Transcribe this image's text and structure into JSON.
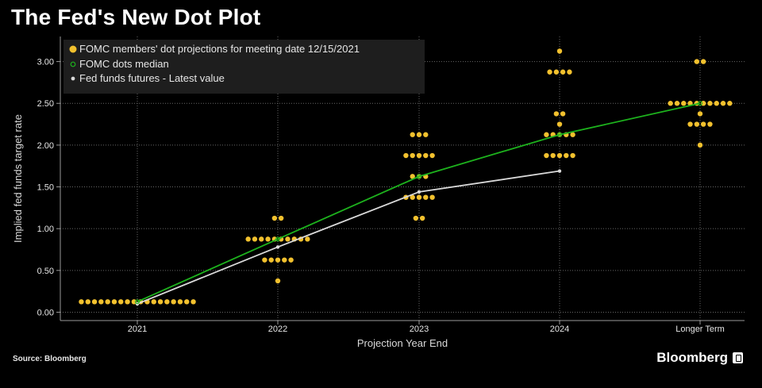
{
  "title": "The Fed's New Dot Plot",
  "source": "Source: Bloomberg",
  "brand": "Bloomberg",
  "chart_data": {
    "type": "scatter",
    "xlabel": "Projection Year End",
    "ylabel": "Implied fed funds target rate",
    "categories": [
      "2021",
      "2022",
      "2023",
      "2024",
      "Longer Term"
    ],
    "ylim": [
      -0.1,
      3.3
    ],
    "yticks": [
      "0.00",
      "0.50",
      "1.00",
      "1.50",
      "2.00",
      "2.50",
      "3.00"
    ],
    "grid": true,
    "legend_position": "top-left",
    "colors": {
      "dots": "#f2c12e",
      "median": "#1db21d",
      "futures": "#d9d9d9",
      "grid": "#666666"
    },
    "series": [
      {
        "name": "FOMC members' dot projections for meeting date 12/15/2021",
        "kind": "dots",
        "points": [
          {
            "x": "2021",
            "y": 0.125,
            "count": 18
          },
          {
            "x": "2022",
            "y": 0.375,
            "count": 1
          },
          {
            "x": "2022",
            "y": 0.625,
            "count": 5
          },
          {
            "x": "2022",
            "y": 0.875,
            "count": 10
          },
          {
            "x": "2022",
            "y": 1.125,
            "count": 2
          },
          {
            "x": "2023",
            "y": 1.125,
            "count": 2
          },
          {
            "x": "2023",
            "y": 1.375,
            "count": 5
          },
          {
            "x": "2023",
            "y": 1.625,
            "count": 3
          },
          {
            "x": "2023",
            "y": 1.875,
            "count": 5
          },
          {
            "x": "2023",
            "y": 2.125,
            "count": 3
          },
          {
            "x": "2024",
            "y": 1.875,
            "count": 5
          },
          {
            "x": "2024",
            "y": 2.125,
            "count": 5
          },
          {
            "x": "2024",
            "y": 2.25,
            "count": 1
          },
          {
            "x": "2024",
            "y": 2.375,
            "count": 2
          },
          {
            "x": "2024",
            "y": 2.875,
            "count": 4
          },
          {
            "x": "2024",
            "y": 3.125,
            "count": 1
          },
          {
            "x": "Longer Term",
            "y": 2.0,
            "count": 1
          },
          {
            "x": "Longer Term",
            "y": 2.25,
            "count": 4
          },
          {
            "x": "Longer Term",
            "y": 2.375,
            "count": 1
          },
          {
            "x": "Longer Term",
            "y": 2.5,
            "count": 10
          },
          {
            "x": "Longer Term",
            "y": 3.0,
            "count": 2
          }
        ]
      },
      {
        "name": "FOMC dots median",
        "kind": "line",
        "values": [
          0.125,
          0.875,
          1.625,
          2.125,
          2.5
        ]
      },
      {
        "name": "Fed funds futures - Latest value",
        "kind": "line",
        "values": [
          0.1,
          0.78,
          1.44,
          1.69,
          null
        ]
      }
    ]
  }
}
